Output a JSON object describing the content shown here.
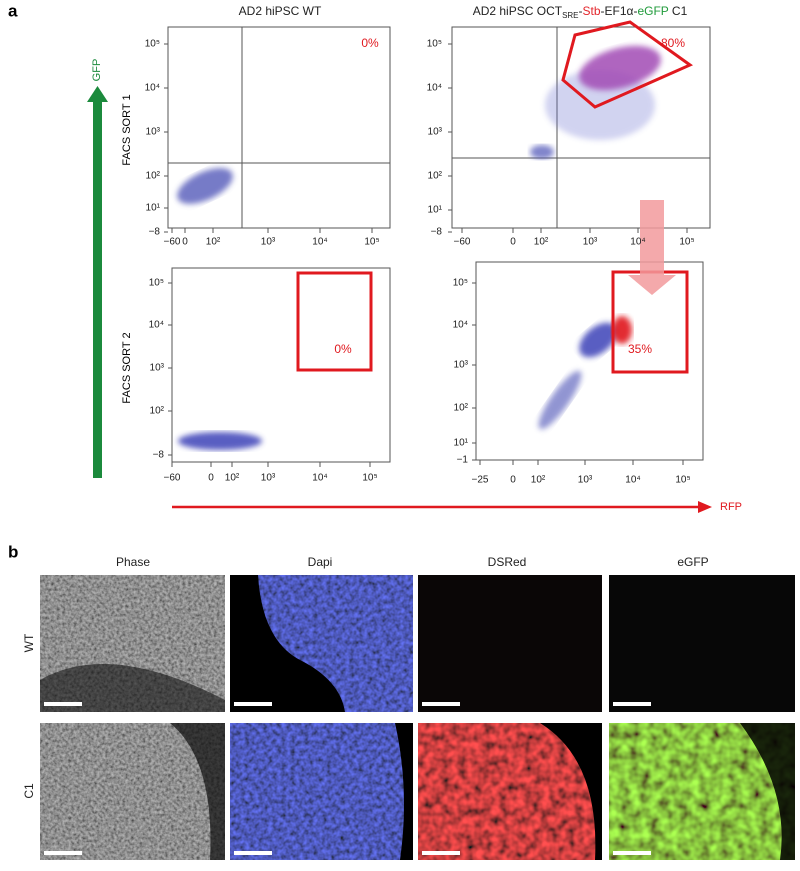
{
  "panel_a": {
    "label": "a",
    "column_titles": [
      [
        {
          "text": "AD2 hiPSC WT"
        }
      ],
      [
        {
          "text": "AD2 hiPSC OCT"
        },
        {
          "text": "SRE",
          "sub": true
        },
        {
          "text": "-"
        },
        {
          "text": "Stb",
          "color": "#e3252b"
        },
        {
          "text": "-EF1α-"
        },
        {
          "text": "eGFP",
          "color": "#1f9a3a"
        },
        {
          "text": " C1"
        }
      ]
    ],
    "row_labels": [
      "FACS SORT 1",
      "FACS SORT 2"
    ],
    "y_axis_label": "GFP",
    "x_axis_label": "RFP",
    "plots": [
      {
        "yticks": [
          "10⁵",
          "10⁴",
          "10³",
          "10²",
          "10¹",
          "−8"
        ],
        "xticks": [
          "−60",
          "0",
          "10²",
          "10³",
          "10⁴",
          "10⁵"
        ],
        "gate": "0%"
      },
      {
        "yticks": [
          "10⁵",
          "10⁴",
          "10³",
          "10²",
          "10¹",
          "−8"
        ],
        "xticks": [
          "−60",
          "0",
          "10²",
          "10³",
          "10⁴",
          "10⁵"
        ],
        "gate": "80%"
      },
      {
        "yticks": [
          "10⁵",
          "10⁴",
          "10³",
          "10²",
          "−8"
        ],
        "xticks": [
          "−60",
          "0",
          "10²",
          "10³",
          "10⁴",
          "10⁵"
        ],
        "gate": "0%"
      },
      {
        "yticks": [
          "10⁵",
          "10⁴",
          "10³",
          "10²",
          "10¹",
          "−1"
        ],
        "xticks": [
          "−25",
          "0",
          "10²",
          "10³",
          "10⁴",
          "10⁵"
        ],
        "gate": "35%"
      }
    ]
  },
  "panel_b": {
    "label": "b",
    "column_titles": [
      "Phase",
      "Dapi",
      "DSRed",
      "eGFP"
    ],
    "row_labels": [
      "WT",
      "C1"
    ]
  }
}
